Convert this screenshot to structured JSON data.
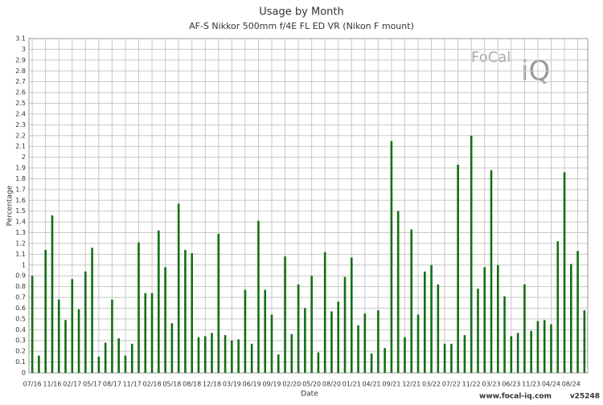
{
  "chart_data": {
    "type": "bar",
    "title": "Usage by Month",
    "subtitle": "AF-S Nikkor 500mm f/4E FL ED VR (Nikon F mount)",
    "x_label": "Date",
    "y_label": "Percentage",
    "logo": "FoCal",
    "logo_mark": "iQ",
    "footer": "www.focal-iq.com",
    "version": "v25248",
    "color": "#146e14",
    "grid": true,
    "categories": [
      "07/16",
      null,
      null,
      "11/16",
      null,
      null,
      "02/17",
      null,
      null,
      "05/17",
      null,
      null,
      "08/17",
      null,
      null,
      "11/17",
      null,
      null,
      "02/18",
      null,
      null,
      "05/18",
      null,
      null,
      "08/18",
      null,
      null,
      "12/18",
      null,
      null,
      "03/19",
      null,
      null,
      "06/19",
      null,
      null,
      "09/19",
      null,
      null,
      "02/20",
      null,
      null,
      "05/20",
      null,
      null,
      "08/20",
      null,
      null,
      "01/21",
      null,
      null,
      "04/21",
      null,
      null,
      "09/21",
      null,
      null,
      "12/21",
      null,
      null,
      "03/22",
      null,
      null,
      "07/22",
      null,
      null,
      "11/22",
      null,
      null,
      "03/23",
      null,
      null,
      "06/23",
      null,
      null,
      "11/23",
      null,
      null,
      "04/24",
      null,
      null,
      "08/24",
      null,
      null
    ],
    "values": [
      0.9,
      0.16,
      1.14,
      1.46,
      0.68,
      0.49,
      0.87,
      0.59,
      0.94,
      1.16,
      0.15,
      0.28,
      0.68,
      0.32,
      0.16,
      0.27,
      1.21,
      0.74,
      0.74,
      1.32,
      0.98,
      0.46,
      1.57,
      1.14,
      1.11,
      0.33,
      0.34,
      0.37,
      1.29,
      0.35,
      0.3,
      0.31,
      0.77,
      0.27,
      1.41,
      0.77,
      0.54,
      0.17,
      1.08,
      0.36,
      0.82,
      0.6,
      0.9,
      0.19,
      1.12,
      0.57,
      0.66,
      0.89,
      1.07,
      0.44,
      0.55,
      0.18,
      0.58,
      0.23,
      2.15,
      1.5,
      0.33,
      1.33,
      0.54,
      0.94,
      1.0,
      0.82,
      0.27,
      0.27,
      1.93,
      0.35,
      2.2,
      0.78,
      0.98,
      1.88,
      1.0,
      0.71,
      0.34,
      0.37,
      0.82,
      0.39,
      0.48,
      0.49,
      0.45,
      1.22,
      1.86,
      1.01,
      1.13,
      0.58
    ],
    "ylim": [
      0,
      3.1
    ],
    "yticks": [
      0,
      0.1,
      0.2,
      0.3,
      0.4,
      0.5,
      0.6,
      0.7,
      0.8,
      0.9,
      1,
      1.1,
      1.2,
      1.3,
      1.4,
      1.5,
      1.6,
      1.7,
      1.8,
      1.9,
      2,
      2.1,
      2.2,
      2.3,
      2.4,
      2.5,
      2.6,
      2.7,
      2.8,
      2.9,
      3,
      3.1
    ]
  }
}
